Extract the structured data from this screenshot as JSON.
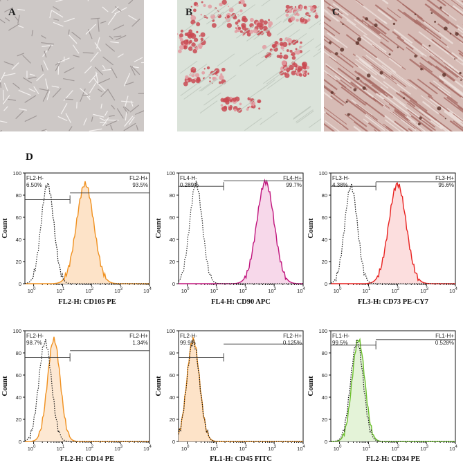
{
  "photos": [
    {
      "letter": "A",
      "tint": "#cfc9c7"
    },
    {
      "letter": "B",
      "tint": "#d9e2d8"
    },
    {
      "letter": "C",
      "tint": "#d8bcb6"
    }
  ],
  "flow_label": "D",
  "chart_data": [
    {
      "type": "area",
      "xlabel": "FL2-H: CD105 PE",
      "ylabel": "Count",
      "xlim": [
        0.5,
        10000
      ],
      "ylim": [
        0,
        100
      ],
      "xscale": "log",
      "color": "#f0901e",
      "fill": "#fde3c8",
      "gate_left": {
        "name": "FL2-H-",
        "value": "6.50%"
      },
      "gate_right": {
        "name": "FL2-H+",
        "value": "93.5%"
      },
      "control_peak_x": 3,
      "control_peak_y": 90,
      "sample_peak_x": 60,
      "sample_peak_y": 90
    },
    {
      "type": "area",
      "xlabel": "FL4-H: CD90 APC",
      "ylabel": "Count",
      "xlim": [
        0.5,
        10000
      ],
      "ylim": [
        0,
        100
      ],
      "xscale": "log",
      "color": "#c0137c",
      "fill": "#f7d8ea",
      "gate_left": {
        "name": "FL4-H-",
        "value": "0.289%"
      },
      "gate_right": {
        "name": "FL4-H+",
        "value": "99.7%"
      },
      "control_peak_x": 2,
      "control_peak_y": 90,
      "sample_peak_x": 500,
      "sample_peak_y": 92
    },
    {
      "type": "area",
      "xlabel": "FL3-H: CD73 PE-CY7",
      "ylabel": "Count",
      "xlim": [
        0.5,
        10000
      ],
      "ylim": [
        0,
        100
      ],
      "xscale": "log",
      "color": "#e8201e",
      "fill": "#fcdede",
      "gate_left": {
        "name": "FL3-H-",
        "value": "4.38%"
      },
      "gate_right": {
        "name": "FL3-H+",
        "value": "95.6%"
      },
      "control_peak_x": 2.5,
      "control_peak_y": 88,
      "sample_peak_x": 100,
      "sample_peak_y": 90
    },
    {
      "type": "area",
      "xlabel": "FL2-H: CD14 PE",
      "ylabel": "Count",
      "xlim": [
        0.5,
        10000
      ],
      "ylim": [
        0,
        100
      ],
      "xscale": "log",
      "color": "#f0901e",
      "fill": "#fde8d2",
      "gate_left": {
        "name": "FL2-H-",
        "value": "98.7%"
      },
      "gate_right": {
        "name": "FL2-H+",
        "value": "1.34%"
      },
      "control_peak_x": 2.5,
      "control_peak_y": 90,
      "sample_peak_x": 5,
      "sample_peak_y": 92
    },
    {
      "type": "area",
      "xlabel": "FL1-H: CD45 FITC",
      "ylabel": "Count",
      "xlim": [
        0.5,
        10000
      ],
      "ylim": [
        0,
        100
      ],
      "xscale": "log",
      "color": "#f0901e",
      "fill": "#fde3c8",
      "gate_left": {
        "name": "FL2-H-",
        "value": "99.9%"
      },
      "gate_right": {
        "name": "FL2-H+",
        "value": "0.125%"
      },
      "control_peak_x": 1.6,
      "control_peak_y": 90,
      "sample_peak_x": 1.6,
      "sample_peak_y": 92
    },
    {
      "type": "area",
      "xlabel": "FL2-H: CD34 PE",
      "ylabel": "Count",
      "xlim": [
        0.5,
        10000
      ],
      "ylim": [
        0,
        100
      ],
      "xscale": "log",
      "color": "#6abf2a",
      "fill": "#e4f3d8",
      "gate_left": {
        "name": "FL1-H-",
        "value": "99.5%"
      },
      "gate_right": {
        "name": "FL1-H+",
        "value": "0.528%"
      },
      "control_peak_x": 4,
      "control_peak_y": 90,
      "sample_peak_x": 4.5,
      "sample_peak_y": 92
    }
  ],
  "axis": {
    "y_ticks": [
      "0",
      "20",
      "40",
      "60",
      "80",
      "100"
    ],
    "x_ticks": [
      {
        "base": "10",
        "exp": "0"
      },
      {
        "base": "10",
        "exp": "1"
      },
      {
        "base": "10",
        "exp": "2"
      },
      {
        "base": "10",
        "exp": "3"
      },
      {
        "base": "10",
        "exp": "4"
      }
    ]
  }
}
